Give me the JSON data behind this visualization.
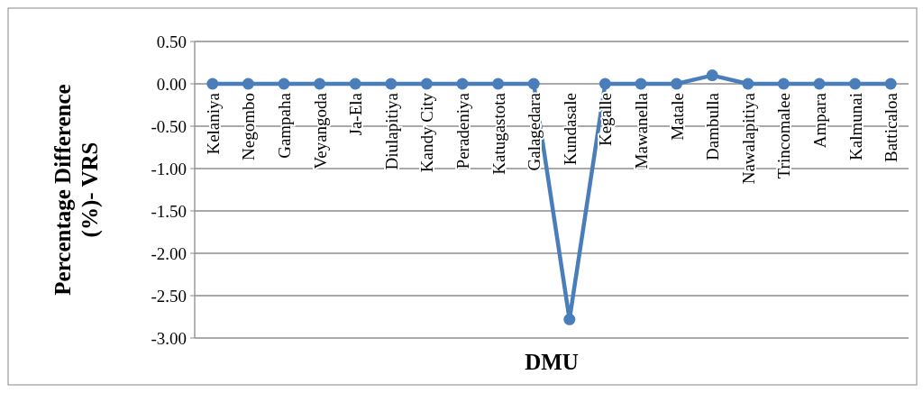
{
  "chart_data": {
    "type": "line",
    "xlabel": "DMU",
    "ylabel": "Percentage Difference (%)- VRS",
    "categories": [
      "Kelaniya",
      "Negombo",
      "Gampaha",
      "Veyangoda",
      "Ja-Ela",
      "Diulapitiya",
      "Kandy City",
      "Peradeniya",
      "Katugastota",
      "Galagedara",
      "Kundasale",
      "Kegalle",
      "Mawanella",
      "Matale",
      "Dambulla",
      "Nawalapitiya",
      "Trincomalee",
      "Ampara",
      "Kalmunai",
      "Batticaloa"
    ],
    "series": [
      {
        "color": "#4a7ebb",
        "values": [
          0,
          0,
          0,
          0,
          0,
          0,
          0,
          0,
          0,
          0,
          -2.78,
          0,
          0,
          0,
          0.1,
          0,
          0,
          0,
          0,
          0
        ]
      }
    ],
    "ylim": [
      -3,
      0.5
    ],
    "yticks": [
      {
        "value": 0.5,
        "label": "0.50"
      },
      {
        "value": 0,
        "label": "0.00"
      },
      {
        "value": -0.5,
        "label": "-0.50"
      },
      {
        "value": -1,
        "label": "-1.00"
      },
      {
        "value": -1.5,
        "label": "-1.50"
      },
      {
        "value": -2,
        "label": "-2.00"
      },
      {
        "value": -2.5,
        "label": "-2.50"
      },
      {
        "value": -3,
        "label": "-3.00"
      }
    ],
    "grid": "y",
    "marker": "circle",
    "line_style": "solid"
  }
}
